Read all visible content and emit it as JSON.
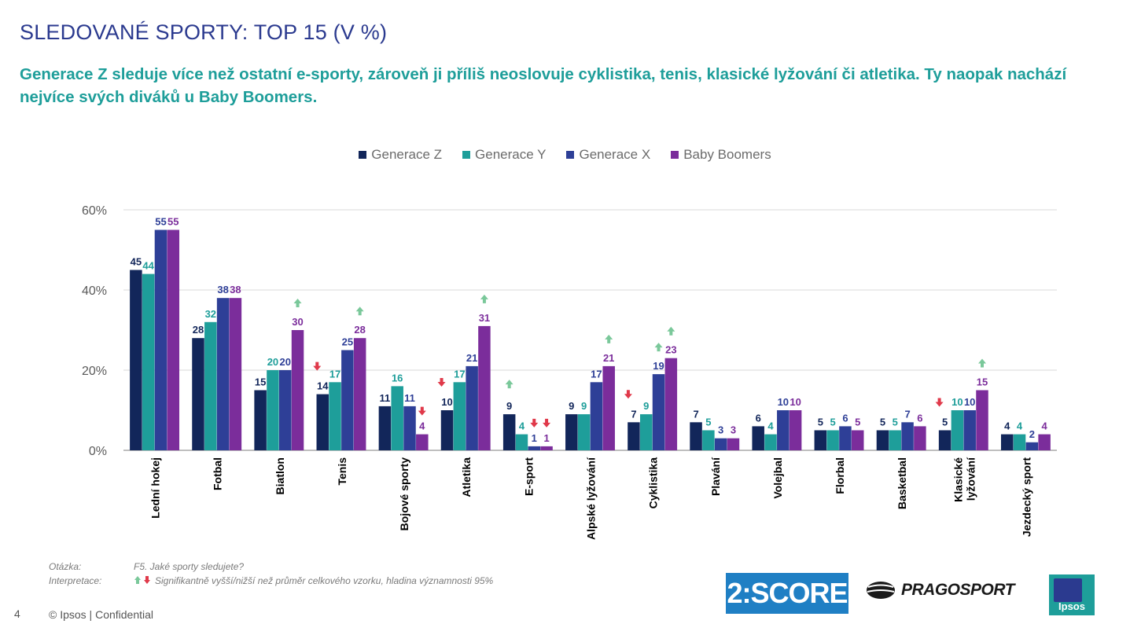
{
  "title": "SLEDOVANÉ SPORTY: TOP 15 (V %)",
  "subtitle": "Generace Z sleduje více než ostatní e-sporty, zároveň ji příliš neoslovuje cyklistika, tenis, klasické lyžování či atletika. Ty naopak nachází nejvíce svých diváků u Baby Boomers.",
  "chart_data": {
    "type": "bar",
    "categories": [
      "Lední hokej",
      "Fotbal",
      "Biatlon",
      "Tenis",
      "Bojové sporty",
      "Atletika",
      "E-sport",
      "Alpské lyžování",
      "Cyklistika",
      "Plavání",
      "Volejbal",
      "Florbal",
      "Basketbal",
      "Klasické lyžování",
      "Jezdecký sport"
    ],
    "series": [
      {
        "name": "Generace Z",
        "color": "#12265a",
        "values": [
          45,
          28,
          15,
          14,
          11,
          10,
          9,
          9,
          7,
          7,
          6,
          5,
          5,
          5,
          4
        ]
      },
      {
        "name": "Generace Y",
        "color": "#1e9e9a",
        "values": [
          44,
          32,
          20,
          17,
          16,
          17,
          4,
          9,
          9,
          5,
          4,
          5,
          5,
          10,
          4
        ]
      },
      {
        "name": "Generace X",
        "color": "#2e3f97",
        "values": [
          55,
          38,
          20,
          25,
          11,
          21,
          1,
          17,
          19,
          3,
          10,
          6,
          7,
          10,
          2
        ]
      },
      {
        "name": "Baby Boomers",
        "color": "#7b2d9b",
        "values": [
          55,
          38,
          30,
          28,
          4,
          31,
          1,
          21,
          23,
          3,
          10,
          5,
          6,
          15,
          4
        ]
      }
    ],
    "label_colors": [
      "#12265a",
      "#1e9e9a",
      "#2e3f97",
      "#7b2d9b"
    ],
    "significance": [
      {
        "category": 2,
        "series": 3,
        "dir": "up"
      },
      {
        "category": 3,
        "series": 0,
        "dir": "down"
      },
      {
        "category": 3,
        "series": 3,
        "dir": "up"
      },
      {
        "category": 4,
        "series": 3,
        "dir": "down"
      },
      {
        "category": 5,
        "series": 0,
        "dir": "down"
      },
      {
        "category": 5,
        "series": 3,
        "dir": "up"
      },
      {
        "category": 6,
        "series": 0,
        "dir": "up"
      },
      {
        "category": 6,
        "series": 2,
        "dir": "down"
      },
      {
        "category": 6,
        "series": 3,
        "dir": "down"
      },
      {
        "category": 7,
        "series": 3,
        "dir": "up"
      },
      {
        "category": 8,
        "series": 0,
        "dir": "down"
      },
      {
        "category": 8,
        "series": 2,
        "dir": "up"
      },
      {
        "category": 8,
        "series": 3,
        "dir": "up"
      },
      {
        "category": 13,
        "series": 0,
        "dir": "down"
      },
      {
        "category": 13,
        "series": 3,
        "dir": "up"
      }
    ],
    "yticks": [
      0,
      20,
      40,
      60
    ],
    "ytick_labels": [
      "0%",
      "20%",
      "40%",
      "60%"
    ],
    "ylim": [
      0,
      60
    ],
    "grid": true,
    "legend_position": "top"
  },
  "footer": {
    "question_label": "Otázka:",
    "question_text": "F5. Jaké sporty sledujete?",
    "interpretation_label": "Interpretace:",
    "interpretation_text": "Signifikantně vyšší/nižší než průměr celkového vzorku, hladina významnosti 95%",
    "page_number": "4",
    "copyright": "© Ipsos | Confidential"
  },
  "logos": {
    "score": "2:SCORE",
    "pragosport": "PRAGOSPORT",
    "ipsos": "Ipsos"
  },
  "colors": {
    "up_arrow": "#7ac89a",
    "down_arrow": "#e0394a",
    "grid": "#d9d9d9",
    "axis": "#7f7f7f"
  }
}
